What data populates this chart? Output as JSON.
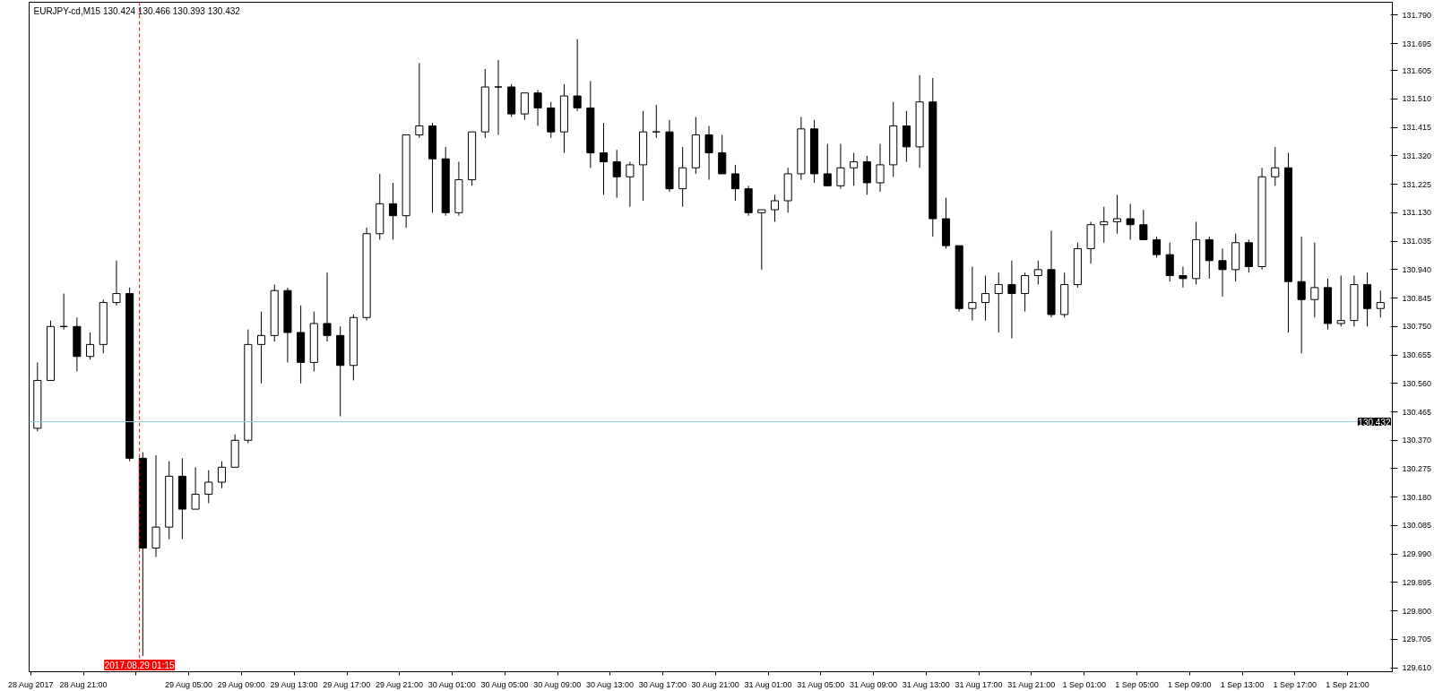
{
  "chart_data": {
    "type": "candlestick",
    "title": "EURJPY-cd,M15  130.424 130.466 130.393 130.432",
    "x": [
      "2017-08-28T17:30",
      "2017-08-28T18:30",
      "2017-08-28T19:30",
      "2017-08-28T20:30",
      "2017-08-28T21:30",
      "2017-08-28T22:30",
      "2017-08-28T23:30",
      "2017-08-29T00:30",
      "2017-08-29T01:30",
      "2017-08-29T02:30",
      "2017-08-29T03:30",
      "2017-08-29T04:30",
      "2017-08-29T05:30",
      "2017-08-29T06:30",
      "2017-08-29T07:30",
      "2017-08-29T08:30",
      "2017-08-29T09:30",
      "2017-08-29T10:30",
      "2017-08-29T11:30",
      "2017-08-29T12:30",
      "2017-08-29T13:30",
      "2017-08-29T14:30",
      "2017-08-29T15:30",
      "2017-08-29T16:30",
      "2017-08-29T17:30",
      "2017-08-29T18:30",
      "2017-08-29T19:30",
      "2017-08-29T20:30",
      "2017-08-29T21:30",
      "2017-08-29T22:30",
      "2017-08-29T23:30",
      "2017-08-30T00:30",
      "2017-08-30T01:30",
      "2017-08-30T02:30",
      "2017-08-30T03:30",
      "2017-08-30T04:30",
      "2017-08-30T05:30",
      "2017-08-30T06:30",
      "2017-08-30T07:30",
      "2017-08-30T08:30",
      "2017-08-30T09:30",
      "2017-08-30T10:30",
      "2017-08-30T11:30",
      "2017-08-30T12:30",
      "2017-08-30T13:30",
      "2017-08-30T14:30",
      "2017-08-30T15:30",
      "2017-08-30T16:30",
      "2017-08-30T17:30",
      "2017-08-30T18:30",
      "2017-08-30T19:30",
      "2017-08-30T20:30",
      "2017-08-30T21:30",
      "2017-08-30T22:30",
      "2017-08-30T23:30",
      "2017-08-31T00:30",
      "2017-08-31T01:30",
      "2017-08-31T02:30",
      "2017-08-31T03:30",
      "2017-08-31T04:30",
      "2017-08-31T05:30",
      "2017-08-31T06:30",
      "2017-08-31T07:30",
      "2017-08-31T08:30",
      "2017-08-31T09:30",
      "2017-08-31T10:30",
      "2017-08-31T11:30",
      "2017-08-31T12:30",
      "2017-08-31T13:30",
      "2017-08-31T14:30",
      "2017-08-31T15:30",
      "2017-08-31T16:30",
      "2017-08-31T17:30",
      "2017-08-31T18:30",
      "2017-08-31T19:30",
      "2017-08-31T20:30",
      "2017-08-31T21:30",
      "2017-08-31T22:30",
      "2017-08-31T23:30",
      "2017-09-01T00:30",
      "2017-09-01T01:30",
      "2017-09-01T02:30",
      "2017-09-01T03:30",
      "2017-09-01T04:30",
      "2017-09-01T05:30",
      "2017-09-01T06:30",
      "2017-09-01T07:30",
      "2017-09-01T08:30",
      "2017-09-01T09:30",
      "2017-09-01T10:30",
      "2017-09-01T11:30",
      "2017-09-01T12:30",
      "2017-09-01T13:30",
      "2017-09-01T14:30",
      "2017-09-01T15:30",
      "2017-09-01T16:30",
      "2017-09-01T17:30",
      "2017-09-01T18:30",
      "2017-09-01T19:30",
      "2017-09-01T20:30",
      "2017-09-01T21:30",
      "2017-09-01T22:30",
      "2017-09-01T23:30"
    ],
    "ohlc": [
      [
        130.41,
        130.63,
        130.4,
        130.57
      ],
      [
        130.57,
        130.77,
        130.57,
        130.75
      ],
      [
        130.75,
        130.86,
        130.74,
        130.75
      ],
      [
        130.75,
        130.78,
        130.6,
        130.65
      ],
      [
        130.65,
        130.73,
        130.64,
        130.69
      ],
      [
        130.69,
        130.84,
        130.66,
        130.83
      ],
      [
        130.83,
        130.97,
        130.82,
        130.86
      ],
      [
        130.86,
        130.88,
        130.3,
        130.31
      ],
      [
        130.31,
        130.33,
        129.65,
        130.01
      ],
      [
        130.01,
        130.32,
        129.98,
        130.08
      ],
      [
        130.08,
        130.3,
        130.04,
        130.25
      ],
      [
        130.25,
        130.31,
        130.04,
        130.14
      ],
      [
        130.14,
        130.28,
        130.14,
        130.19
      ],
      [
        130.19,
        130.27,
        130.16,
        130.23
      ],
      [
        130.23,
        130.3,
        130.21,
        130.28
      ],
      [
        130.28,
        130.39,
        130.28,
        130.37
      ],
      [
        130.37,
        130.74,
        130.36,
        130.69
      ],
      [
        130.69,
        130.8,
        130.56,
        130.72
      ],
      [
        130.72,
        130.89,
        130.7,
        130.87
      ],
      [
        130.87,
        130.88,
        130.63,
        130.73
      ],
      [
        130.73,
        130.82,
        130.56,
        130.63
      ],
      [
        130.63,
        130.8,
        130.6,
        130.76
      ],
      [
        130.76,
        130.93,
        130.7,
        130.72
      ],
      [
        130.72,
        130.75,
        130.45,
        130.62
      ],
      [
        130.62,
        130.79,
        130.57,
        130.78
      ],
      [
        130.78,
        131.08,
        130.77,
        131.06
      ],
      [
        131.06,
        131.26,
        131.04,
        131.16
      ],
      [
        131.16,
        131.23,
        131.04,
        131.12
      ],
      [
        131.12,
        131.39,
        131.08,
        131.39
      ],
      [
        131.39,
        131.63,
        131.38,
        131.42
      ],
      [
        131.42,
        131.43,
        131.13,
        131.31
      ],
      [
        131.31,
        131.35,
        131.12,
        131.13
      ],
      [
        131.13,
        131.3,
        131.12,
        131.24
      ],
      [
        131.24,
        131.4,
        131.22,
        131.4
      ],
      [
        131.4,
        131.61,
        131.38,
        131.55
      ],
      [
        131.55,
        131.64,
        131.39,
        131.55
      ],
      [
        131.55,
        131.56,
        131.45,
        131.46
      ],
      [
        131.46,
        131.53,
        131.44,
        131.53
      ],
      [
        131.53,
        131.54,
        131.42,
        131.48
      ],
      [
        131.48,
        131.5,
        131.38,
        131.4
      ],
      [
        131.4,
        131.56,
        131.33,
        131.52
      ],
      [
        131.52,
        131.71,
        131.47,
        131.48
      ],
      [
        131.48,
        131.57,
        131.28,
        131.33
      ],
      [
        131.33,
        131.43,
        131.19,
        131.3
      ],
      [
        131.3,
        131.34,
        131.18,
        131.25
      ],
      [
        131.25,
        131.3,
        131.15,
        131.29
      ],
      [
        131.29,
        131.47,
        131.17,
        131.4
      ],
      [
        131.4,
        131.49,
        131.38,
        131.4
      ],
      [
        131.4,
        131.44,
        131.2,
        131.21
      ],
      [
        131.21,
        131.35,
        131.15,
        131.28
      ],
      [
        131.28,
        131.45,
        131.26,
        131.39
      ],
      [
        131.39,
        131.42,
        131.24,
        131.33
      ],
      [
        131.33,
        131.39,
        131.26,
        131.26
      ],
      [
        131.26,
        131.29,
        131.17,
        131.21
      ],
      [
        131.21,
        131.22,
        131.12,
        131.13
      ],
      [
        131.13,
        131.14,
        130.94,
        131.14
      ],
      [
        131.14,
        131.19,
        131.1,
        131.17
      ],
      [
        131.17,
        131.28,
        131.13,
        131.26
      ],
      [
        131.26,
        131.45,
        131.24,
        131.41
      ],
      [
        131.41,
        131.44,
        131.23,
        131.26
      ],
      [
        131.26,
        131.36,
        131.22,
        131.22
      ],
      [
        131.22,
        131.36,
        131.21,
        131.28
      ],
      [
        131.28,
        131.33,
        131.22,
        131.3
      ],
      [
        131.3,
        131.32,
        131.19,
        131.23
      ],
      [
        131.23,
        131.36,
        131.2,
        131.29
      ],
      [
        131.29,
        131.5,
        131.25,
        131.42
      ],
      [
        131.42,
        131.47,
        131.3,
        131.35
      ],
      [
        131.35,
        131.59,
        131.28,
        131.5
      ],
      [
        131.5,
        131.58,
        131.05,
        131.11
      ],
      [
        131.11,
        131.18,
        131.01,
        131.02
      ],
      [
        131.02,
        131.02,
        130.8,
        130.81
      ],
      [
        130.81,
        130.95,
        130.77,
        130.83
      ],
      [
        130.83,
        130.92,
        130.77,
        130.86
      ],
      [
        130.86,
        130.93,
        130.73,
        130.89
      ],
      [
        130.89,
        130.97,
        130.71,
        130.86
      ],
      [
        130.86,
        130.93,
        130.8,
        130.92
      ],
      [
        130.92,
        130.97,
        130.89,
        130.94
      ],
      [
        130.94,
        131.07,
        130.78,
        130.79
      ],
      [
        130.79,
        130.93,
        130.78,
        130.89
      ],
      [
        130.89,
        131.03,
        130.88,
        131.01
      ],
      [
        131.01,
        131.1,
        130.96,
        131.09
      ],
      [
        131.09,
        131.15,
        131.03,
        131.1
      ],
      [
        131.1,
        131.19,
        131.06,
        131.11
      ],
      [
        131.11,
        131.16,
        131.04,
        131.09
      ],
      [
        131.09,
        131.14,
        131.04,
        131.04
      ],
      [
        131.04,
        131.05,
        130.98,
        130.99
      ],
      [
        130.99,
        131.03,
        130.9,
        130.92
      ],
      [
        130.92,
        130.95,
        130.88,
        130.91
      ],
      [
        130.91,
        131.1,
        130.89,
        131.04
      ],
      [
        131.04,
        131.05,
        130.91,
        130.97
      ],
      [
        130.97,
        131.01,
        130.85,
        130.94
      ],
      [
        130.94,
        131.06,
        130.9,
        131.03
      ],
      [
        131.03,
        131.04,
        130.93,
        130.95
      ],
      [
        130.95,
        131.28,
        130.94,
        131.25
      ],
      [
        131.25,
        131.35,
        131.22,
        131.28
      ],
      [
        131.28,
        131.33,
        130.73,
        130.9
      ],
      [
        130.9,
        131.05,
        130.66,
        130.84
      ],
      [
        130.84,
        131.03,
        130.78,
        130.88
      ],
      [
        130.88,
        130.91,
        130.74,
        130.76
      ],
      [
        130.76,
        130.92,
        130.75,
        130.77
      ],
      [
        130.77,
        130.92,
        130.75,
        130.89
      ],
      [
        130.89,
        130.93,
        130.75,
        130.81
      ],
      [
        130.81,
        130.87,
        130.78,
        130.83
      ]
    ],
    "xlim": [
      "2017-08-28T16:52",
      "2017-09-02T00:24"
    ],
    "ylim": [
      129.597,
      131.833
    ],
    "xticks": [
      {
        "value": "2017-08-28T17:00",
        "label": "28 Aug 2017"
      },
      {
        "value": "2017-08-28T21:00",
        "label": "28 Aug 21:00"
      },
      {
        "value": "2017-08-29T01:00",
        "label": null
      },
      {
        "value": "2017-08-29T05:00",
        "label": "29 Aug 05:00"
      },
      {
        "value": "2017-08-29T09:00",
        "label": "29 Aug 09:00"
      },
      {
        "value": "2017-08-29T13:00",
        "label": "29 Aug 13:00"
      },
      {
        "value": "2017-08-29T17:00",
        "label": "29 Aug 17:00"
      },
      {
        "value": "2017-08-29T21:00",
        "label": "29 Aug 21:00"
      },
      {
        "value": "2017-08-30T01:00",
        "label": "30 Aug 01:00"
      },
      {
        "value": "2017-08-30T05:00",
        "label": "30 Aug 05:00"
      },
      {
        "value": "2017-08-30T09:00",
        "label": "30 Aug 09:00"
      },
      {
        "value": "2017-08-30T13:00",
        "label": "30 Aug 13:00"
      },
      {
        "value": "2017-08-30T17:00",
        "label": "30 Aug 17:00"
      },
      {
        "value": "2017-08-30T21:00",
        "label": "30 Aug 21:00"
      },
      {
        "value": "2017-08-31T01:00",
        "label": "31 Aug 01:00"
      },
      {
        "value": "2017-08-31T05:00",
        "label": "31 Aug 05:00"
      },
      {
        "value": "2017-08-31T09:00",
        "label": "31 Aug 09:00"
      },
      {
        "value": "2017-08-31T13:00",
        "label": "31 Aug 13:00"
      },
      {
        "value": "2017-08-31T17:00",
        "label": "31 Aug 17:00"
      },
      {
        "value": "2017-08-31T21:00",
        "label": "31 Aug 21:00"
      },
      {
        "value": "2017-09-01T01:00",
        "label": "1 Sep 01:00"
      },
      {
        "value": "2017-09-01T05:00",
        "label": "1 Sep 05:00"
      },
      {
        "value": "2017-09-01T09:00",
        "label": "1 Sep 09:00"
      },
      {
        "value": "2017-09-01T13:00",
        "label": "1 Sep 13:00"
      },
      {
        "value": "2017-09-01T17:00",
        "label": "1 Sep 17:00"
      },
      {
        "value": "2017-09-01T21:00",
        "label": "1 Sep 21:00"
      }
    ],
    "yticks": [
      {
        "value": 129.61,
        "label": "129.610"
      },
      {
        "value": 129.705,
        "label": "129.705"
      },
      {
        "value": 129.8,
        "label": "129.800"
      },
      {
        "value": 129.895,
        "label": "129.895"
      },
      {
        "value": 129.99,
        "label": "129.990"
      },
      {
        "value": 130.085,
        "label": "130.085"
      },
      {
        "value": 130.18,
        "label": "130.180"
      },
      {
        "value": 130.275,
        "label": "130.275"
      },
      {
        "value": 130.37,
        "label": "130.370"
      },
      {
        "value": 130.465,
        "label": "130.465"
      },
      {
        "value": 130.56,
        "label": "130.560"
      },
      {
        "value": 130.655,
        "label": "130.655"
      },
      {
        "value": 130.75,
        "label": "130.750"
      },
      {
        "value": 130.845,
        "label": "130.845"
      },
      {
        "value": 130.94,
        "label": "130.940"
      },
      {
        "value": 131.035,
        "label": "131.035"
      },
      {
        "value": 131.13,
        "label": "131.130"
      },
      {
        "value": 131.225,
        "label": "131.225"
      },
      {
        "value": 131.32,
        "label": "131.320"
      },
      {
        "value": 131.415,
        "label": "131.415"
      },
      {
        "value": 131.51,
        "label": "131.510"
      },
      {
        "value": 131.605,
        "label": "131.605"
      },
      {
        "value": 131.695,
        "label": "131.695"
      },
      {
        "value": 131.79,
        "label": "131.790"
      }
    ],
    "ref_lines": [
      {
        "axis": "y",
        "value": 130.432,
        "label": "130.432",
        "color": "#8fd3dc",
        "line_style": "solid"
      },
      {
        "axis": "x",
        "value": "2017-08-29T01:15",
        "label": "2017.08.29 01:15",
        "color": "#ff0000",
        "line_style": "dashed"
      }
    ]
  }
}
